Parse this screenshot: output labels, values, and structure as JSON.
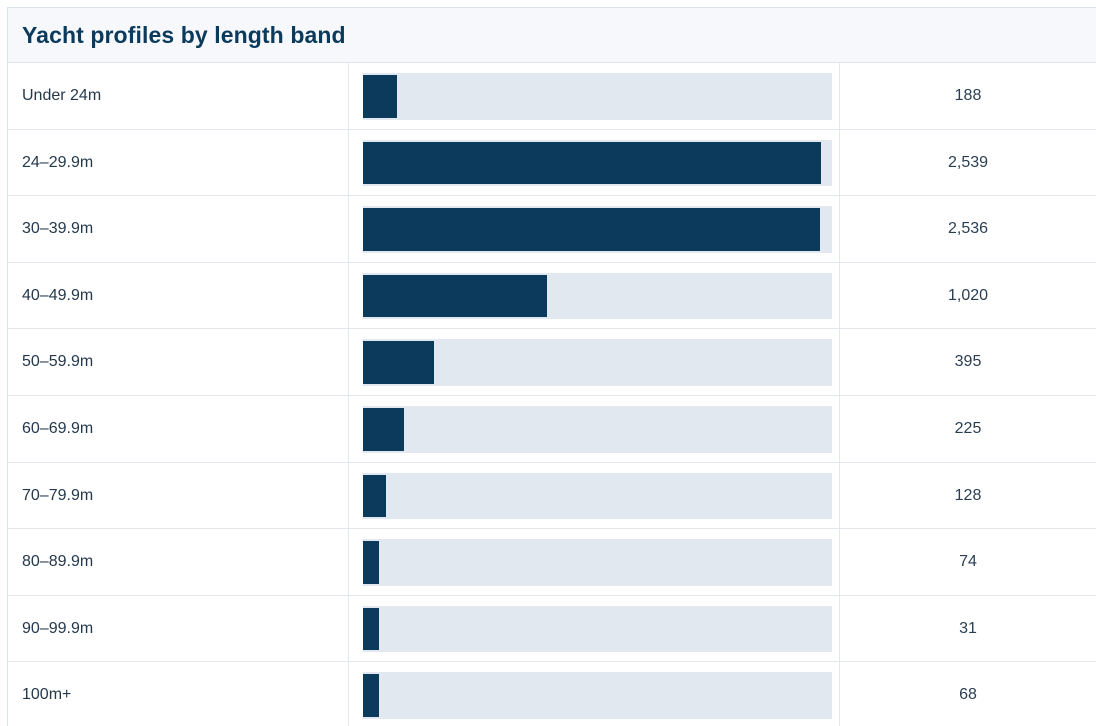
{
  "header": {
    "title": "Yacht profiles by length band"
  },
  "chart_data": {
    "type": "bar",
    "orientation": "horizontal",
    "title": "Yacht profiles by length band",
    "categories": [
      "Under 24m",
      "24–29.9m",
      "30–39.9m",
      "40–49.9m",
      "50–59.9m",
      "60–69.9m",
      "70–79.9m",
      "80–89.9m",
      "90–99.9m",
      "100m+"
    ],
    "values": [
      188,
      2539,
      2536,
      1020,
      395,
      225,
      128,
      74,
      31,
      68
    ],
    "value_labels": [
      "188",
      "2,539",
      "2,536",
      "1,020",
      "395",
      "225",
      "128",
      "74",
      "31",
      "68"
    ],
    "xlim": [
      0,
      2600
    ],
    "grid": false,
    "legend": "none",
    "colors": {
      "bar": "#0c3a5c",
      "track": "#e1e8f0"
    }
  }
}
